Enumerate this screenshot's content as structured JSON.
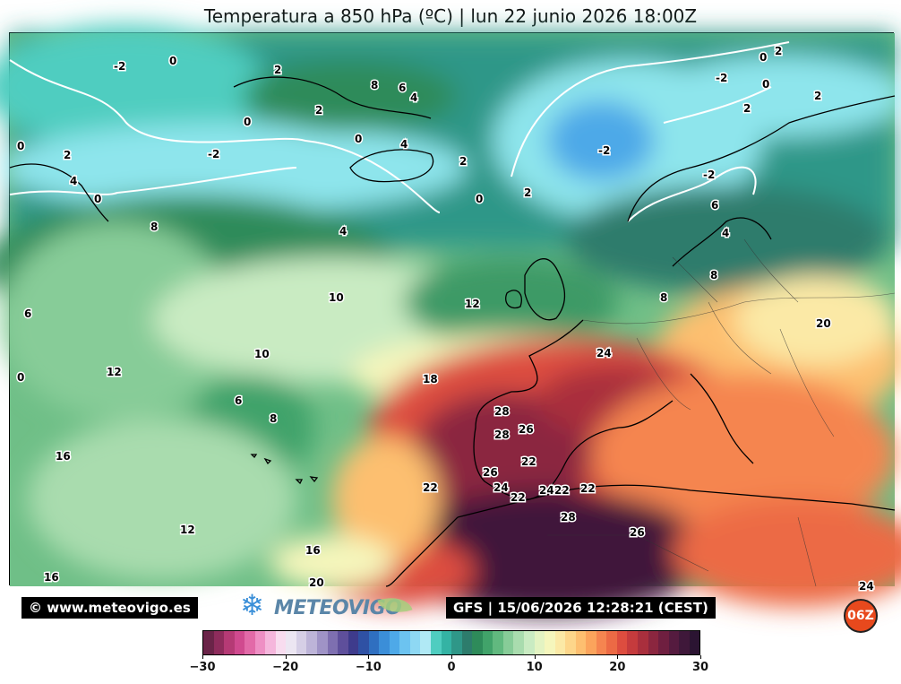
{
  "title": "Temperatura a 850 hPa (ºC) | lun 22 junio 2026 18:00Z",
  "footer": {
    "credit": "© www.meteovigo.es",
    "logo_text": "METEOVIGO",
    "run_info": "GFS | 15/06/2026 12:28:21 (CEST)",
    "cycle_badge": "06Z"
  },
  "colorbar": {
    "min": -30,
    "max": 30,
    "tick_labels": [
      "−30",
      "−20",
      "−10",
      "0",
      "10",
      "20",
      "30"
    ],
    "colors": [
      "#6a2448",
      "#8e2c5c",
      "#b53a75",
      "#d04a8f",
      "#e26aa8",
      "#ee8fc4",
      "#f5b6dc",
      "#f8dcef",
      "#ece6f2",
      "#d6cfe6",
      "#bdb4d8",
      "#9f93c6",
      "#7e6fb0",
      "#5e4f9b",
      "#3e3b8c",
      "#2f51a4",
      "#2f6fc0",
      "#3b8ed8",
      "#4ea9e8",
      "#6cc3f0",
      "#8ed8f3",
      "#b0e9f5",
      "#4fcdc0",
      "#34b3a4",
      "#2f9788",
      "#2d7c6c",
      "#2e8b5a",
      "#41a36a",
      "#61b97f",
      "#87cc98",
      "#a9dcae",
      "#c9ebc2",
      "#e3f3c2",
      "#f5f6bc",
      "#fbe9a6",
      "#fdd68a",
      "#fdbf70",
      "#fba45c",
      "#f58550",
      "#ec6a45",
      "#dd4d3f",
      "#c53b3d",
      "#a92f3d",
      "#8b263f",
      "#6f1f40",
      "#551b3f",
      "#3f183a",
      "#2b1432"
    ]
  },
  "map": {
    "colors": {
      "ocean_cold": "#8ee5ec",
      "ocean_cool": "#2fa39a",
      "green_dark": "#2e8b5a",
      "green_mid": "#6fbf87",
      "green_light": "#a9dcae",
      "yellow": "#f5f0b0",
      "orange": "#fdbf70",
      "red": "#d84a3e",
      "darkred": "#8b263f",
      "purple": "#3f183a",
      "land_line": "#000000"
    },
    "contour_labels": [
      "-2",
      "0",
      "2",
      "8",
      "6",
      "4",
      "2",
      "0",
      "0",
      "4",
      "-2",
      "2",
      "4",
      "0",
      "2",
      "0",
      "0",
      "-2",
      "0",
      "2",
      "-2",
      "0",
      "2",
      "2",
      "-2",
      "6",
      "4",
      "8",
      "8",
      "8",
      "4",
      "10",
      "12",
      "20",
      "24",
      "12",
      "10",
      "18",
      "28",
      "28",
      "26",
      "22",
      "26",
      "24",
      "22",
      "24",
      "22",
      "22",
      "28",
      "26",
      "22",
      "16",
      "12",
      "16",
      "20",
      "16",
      "24",
      "6",
      "8",
      "6",
      "0",
      "2"
    ]
  }
}
